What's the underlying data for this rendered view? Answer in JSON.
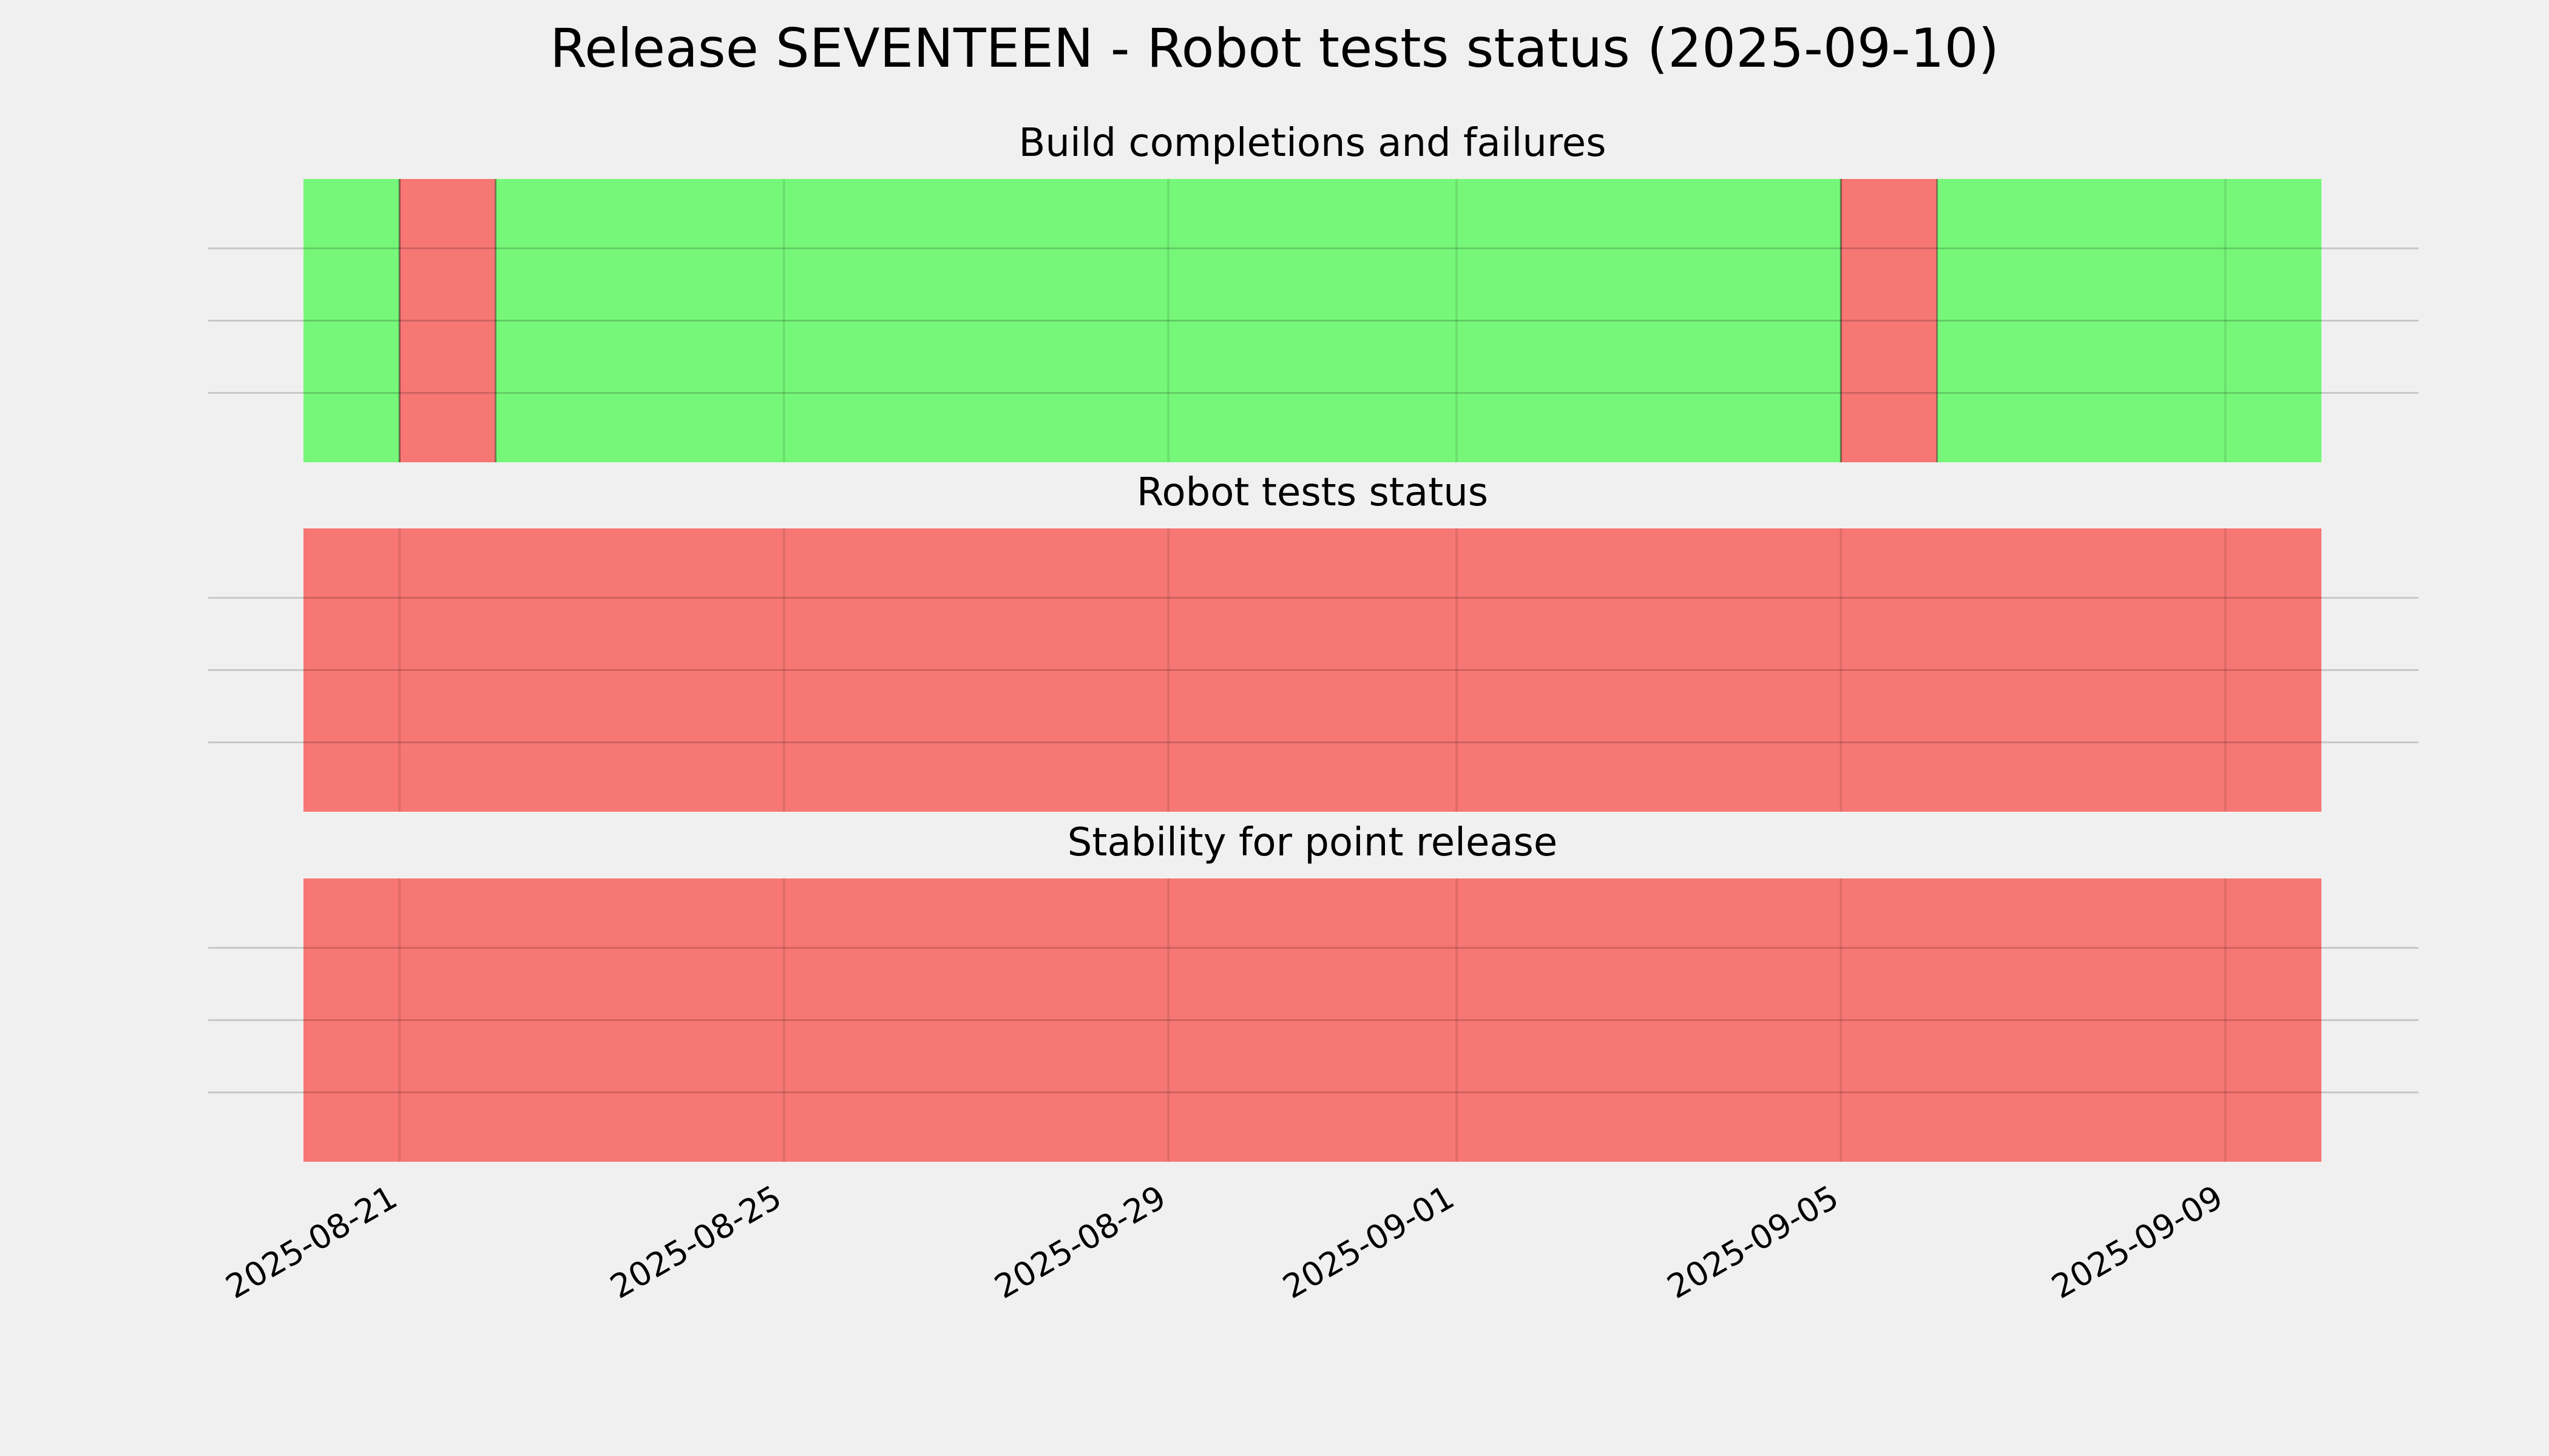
{
  "chart_data": {
    "type": "timeline",
    "title": "Release SEVENTEEN - Robot tests status (2025-09-10)",
    "x_range": [
      "2025-08-20",
      "2025-09-10"
    ],
    "x_ticks": [
      "2025-08-21",
      "2025-08-25",
      "2025-08-29",
      "2025-09-01",
      "2025-09-05",
      "2025-09-09"
    ],
    "grid": true,
    "colors": {
      "pass": "#77f77a",
      "fail": "#f77774",
      "background": "#f0f0f0"
    },
    "panels": [
      {
        "title": "Build completions and failures",
        "segments": [
          {
            "start": "2025-08-20",
            "end": "2025-08-21",
            "status": "pass"
          },
          {
            "start": "2025-08-21",
            "end": "2025-08-22",
            "status": "fail"
          },
          {
            "start": "2025-08-22",
            "end": "2025-09-05",
            "status": "pass"
          },
          {
            "start": "2025-09-05",
            "end": "2025-09-06",
            "status": "fail"
          },
          {
            "start": "2025-09-06",
            "end": "2025-09-10",
            "status": "pass"
          }
        ]
      },
      {
        "title": "Robot tests status",
        "segments": [
          {
            "start": "2025-08-20",
            "end": "2025-09-10",
            "status": "fail"
          }
        ]
      },
      {
        "title": "Stability for point release",
        "segments": [
          {
            "start": "2025-08-20",
            "end": "2025-09-10",
            "status": "fail"
          }
        ]
      }
    ]
  }
}
